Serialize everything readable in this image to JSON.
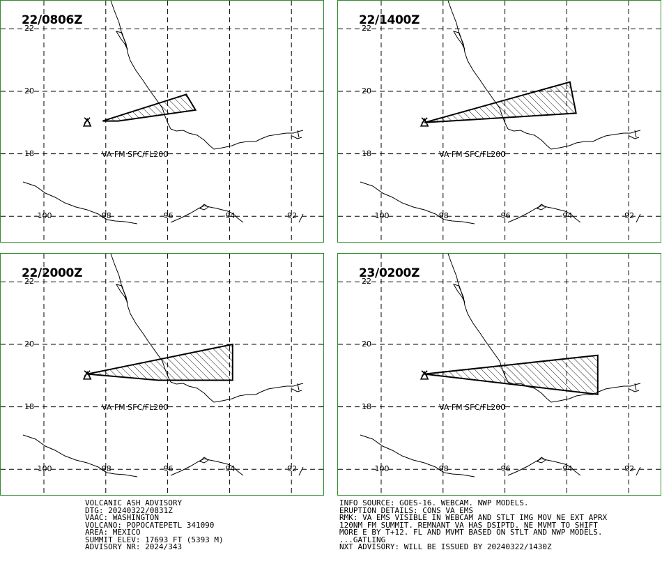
{
  "panels": [
    {
      "title": "22/0806Z",
      "va_label": "VA FM SFC/FL200",
      "polygon": [
        [
          -98.1,
          19.05
        ],
        [
          -97.6,
          19.05
        ],
        [
          -95.1,
          19.4
        ],
        [
          -95.4,
          19.9
        ]
      ]
    },
    {
      "title": "22/1400Z",
      "va_label": "VA FM SFC/FL200",
      "polygon": [
        [
          -98.6,
          19.0
        ],
        [
          -93.7,
          19.3
        ],
        [
          -93.9,
          20.3
        ]
      ]
    },
    {
      "title": "22/2000Z",
      "va_label": "VA FM SFC/FL200",
      "polygon": [
        [
          -98.6,
          19.05
        ],
        [
          -96.3,
          18.85
        ],
        [
          -93.9,
          18.85
        ],
        [
          -93.9,
          20.0
        ]
      ]
    },
    {
      "title": "23/0200Z",
      "va_label": "VA FM SFC/FL200",
      "polygon": [
        [
          -98.6,
          19.05
        ],
        [
          -93.0,
          18.4
        ],
        [
          -93.0,
          19.65
        ]
      ]
    }
  ],
  "map": {
    "lat_labels": [
      "22",
      "20",
      "18"
    ],
    "lon_labels": [
      "-100",
      "-98",
      "-96",
      "-94",
      "-92"
    ],
    "volcano": {
      "lon": -98.6,
      "lat": 19.0
    }
  },
  "advisory_left": [
    "VOLCANIC ASH ADVISORY",
    "DTG: 20240322/0831Z",
    "VAAC: WASHINGTON",
    "VOLCANO: POPOCATEPETL 341090",
    "AREA: MEXICO",
    "SUMMIT ELEV: 17693 FT (5393 M)",
    "ADVISORY NR: 2024/343"
  ],
  "advisory_right": [
    "INFO SOURCE: GOES-16. WEBCAM. NWP MODELS.",
    "ERUPTION DETAILS: CONS VA EMS",
    "RMK: VA EMS VISIBLE IN WEBCAM AND STLT IMG MOV NE EXT APRX",
    "120NM FM SUMMIT. REMNANT VA HAS DSIPTD. NE MVMT TO SHIFT",
    "MORE E BY T+12. FL AND MVMT BASED ON STLT AND NWP MODELS.",
    "...GATLING",
    "NXT ADVISORY: WILL BE ISSUED BY 20240322/1430Z"
  ]
}
